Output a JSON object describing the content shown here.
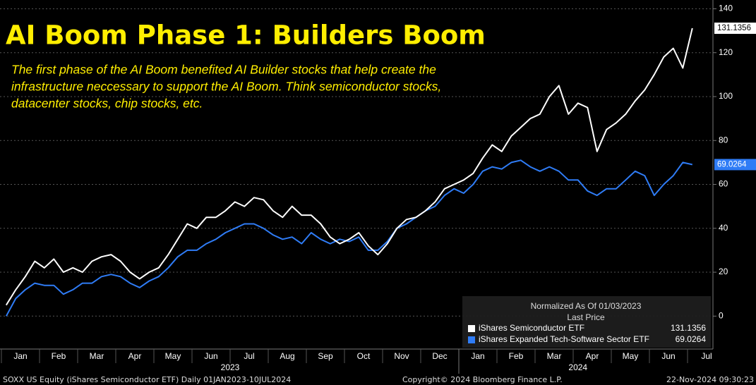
{
  "chart_data": {
    "type": "line",
    "title": "AI Boom Phase 1: Builders Boom",
    "subtitle": [
      "The first phase of the AI Boom benefited AI Builder stocks that help create the",
      "infrastructure neccessary to support the AI Boom. Think semiconductor stocks,",
      "datacenter stocks, chip stocks, etc."
    ],
    "categories": [
      "Jan",
      null,
      null,
      null,
      "Feb",
      null,
      null,
      null,
      "Mar",
      null,
      null,
      null,
      "Apr",
      null,
      null,
      null,
      "May",
      null,
      null,
      null,
      "Jun",
      null,
      null,
      null,
      "Jul",
      null,
      null,
      null,
      "Aug",
      null,
      null,
      null,
      "Sep",
      null,
      null,
      null,
      "Oct",
      null,
      null,
      null,
      "Nov",
      null,
      null,
      null,
      "Dec",
      null,
      null,
      null,
      "Jan",
      null,
      null,
      null,
      "Feb",
      null,
      null,
      null,
      "Mar",
      null,
      null,
      null,
      "Apr",
      null,
      null,
      null,
      "May",
      null,
      null,
      null,
      "Jun",
      null,
      null,
      null,
      "Jul"
    ],
    "years": [
      "2023",
      "2024"
    ],
    "series": [
      {
        "name": "iShares Semiconductor ETF",
        "color": "#ffffff",
        "values": [
          5,
          12,
          18,
          25,
          22,
          26,
          20,
          22,
          20,
          25,
          27,
          28,
          25,
          20,
          17,
          20,
          22,
          28,
          35,
          42,
          40,
          45,
          45,
          48,
          52,
          50,
          54,
          53,
          48,
          45,
          50,
          46,
          46,
          42,
          36,
          33,
          35,
          38,
          32,
          28,
          33,
          40,
          44,
          45,
          48,
          52,
          58,
          60,
          62,
          65,
          72,
          78,
          75,
          82,
          86,
          90,
          92,
          100,
          105,
          92,
          97,
          95,
          75,
          85,
          88,
          92,
          98,
          103,
          110,
          118,
          122,
          113,
          131.1356
        ]
      },
      {
        "name": "iShares Expanded Tech-Software Sector ETF",
        "color": "#2f7cf6",
        "values": [
          0,
          8,
          12,
          15,
          14,
          14,
          10,
          12,
          15,
          15,
          18,
          19,
          18,
          15,
          13,
          16,
          18,
          22,
          27,
          30,
          30,
          33,
          35,
          38,
          40,
          42,
          42,
          40,
          37,
          35,
          36,
          33,
          38,
          35,
          33,
          35,
          34,
          36,
          30,
          30,
          34,
          40,
          42,
          45,
          48,
          50,
          55,
          58,
          56,
          60,
          66,
          68,
          67,
          70,
          71,
          68,
          66,
          68,
          66,
          62,
          62,
          57,
          55,
          58,
          58,
          62,
          66,
          64,
          55,
          60,
          64,
          70,
          69.0264
        ]
      }
    ],
    "legend_title": [
      "Normalized As Of 01/03/2023",
      "Last Price"
    ],
    "ylim": [
      -15,
      144
    ],
    "yticks": [
      0,
      20,
      40,
      60,
      80,
      100,
      120,
      140
    ],
    "grid": true,
    "footer": [
      "SOXX US Equity (iShares Semiconductor ETF)  Daily 01JAN2023-10JUL2024",
      "Copyright© 2024 Bloomberg Finance L.P.",
      "22-Nov-2024 09:30:23"
    ]
  }
}
